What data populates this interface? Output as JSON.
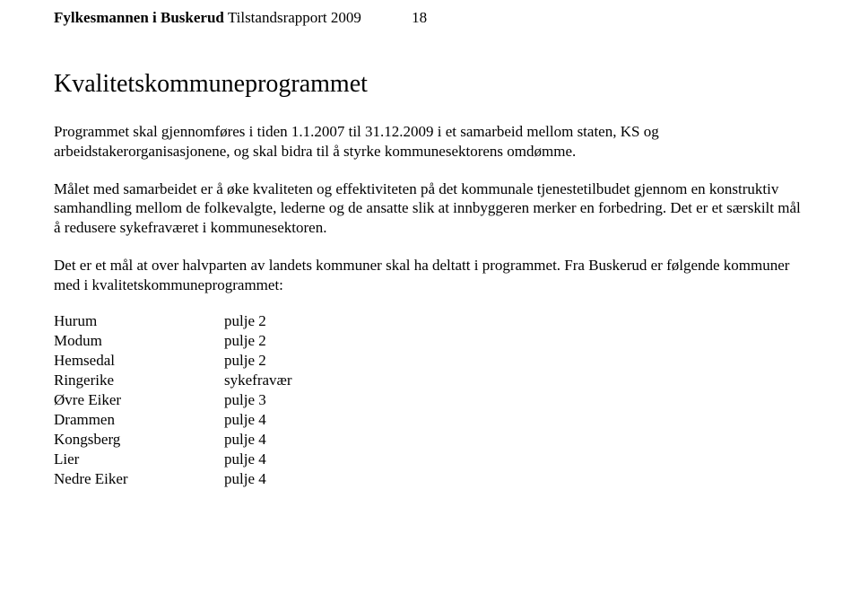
{
  "header": {
    "strong": "Fylkesmannen i Buskerud",
    "normal": " Tilstandsrapport 2009",
    "page_number": "18"
  },
  "title": "Kvalitetskommuneprogrammet",
  "paragraphs": {
    "p1": "Programmet skal gjennomføres i tiden 1.1.2007 til 31.12.2009 i et samarbeid mellom staten, KS og arbeidstakerorganisasjonene, og skal bidra til å styrke kommunesektorens omdømme.",
    "p2": "Målet med samarbeidet er å øke kvaliteten og effektiviteten på det kommunale tjenestetilbudet gjennom en konstruktiv samhandling mellom de folkevalgte, lederne og de ansatte slik at innbyggeren merker en forbedring. Det er et særskilt mål å redusere sykefraværet i kommunesektoren.",
    "p3": "Det er et mål at over halvparten av landets kommuner skal ha deltatt i programmet.  Fra Buskerud er følgende kommuner med i kvalitetskommuneprogrammet:"
  },
  "list": {
    "rows": [
      {
        "name": "Hurum",
        "value": "pulje 2"
      },
      {
        "name": "Modum",
        "value": "pulje 2"
      },
      {
        "name": "Hemsedal",
        "value": "pulje 2"
      },
      {
        "name": "Ringerike",
        "value": "sykefravær"
      },
      {
        "name": "Øvre Eiker",
        "value": "pulje 3"
      },
      {
        "name": "Drammen",
        "value": "pulje 4"
      },
      {
        "name": "Kongsberg",
        "value": "pulje 4"
      },
      {
        "name": "Lier",
        "value": "pulje 4"
      },
      {
        "name": "Nedre Eiker",
        "value": "pulje 4"
      }
    ]
  },
  "style": {
    "background_color": "#ffffff",
    "text_color": "#000000",
    "title_fontsize": 28,
    "body_fontsize": 17,
    "font_family": "Times New Roman"
  }
}
